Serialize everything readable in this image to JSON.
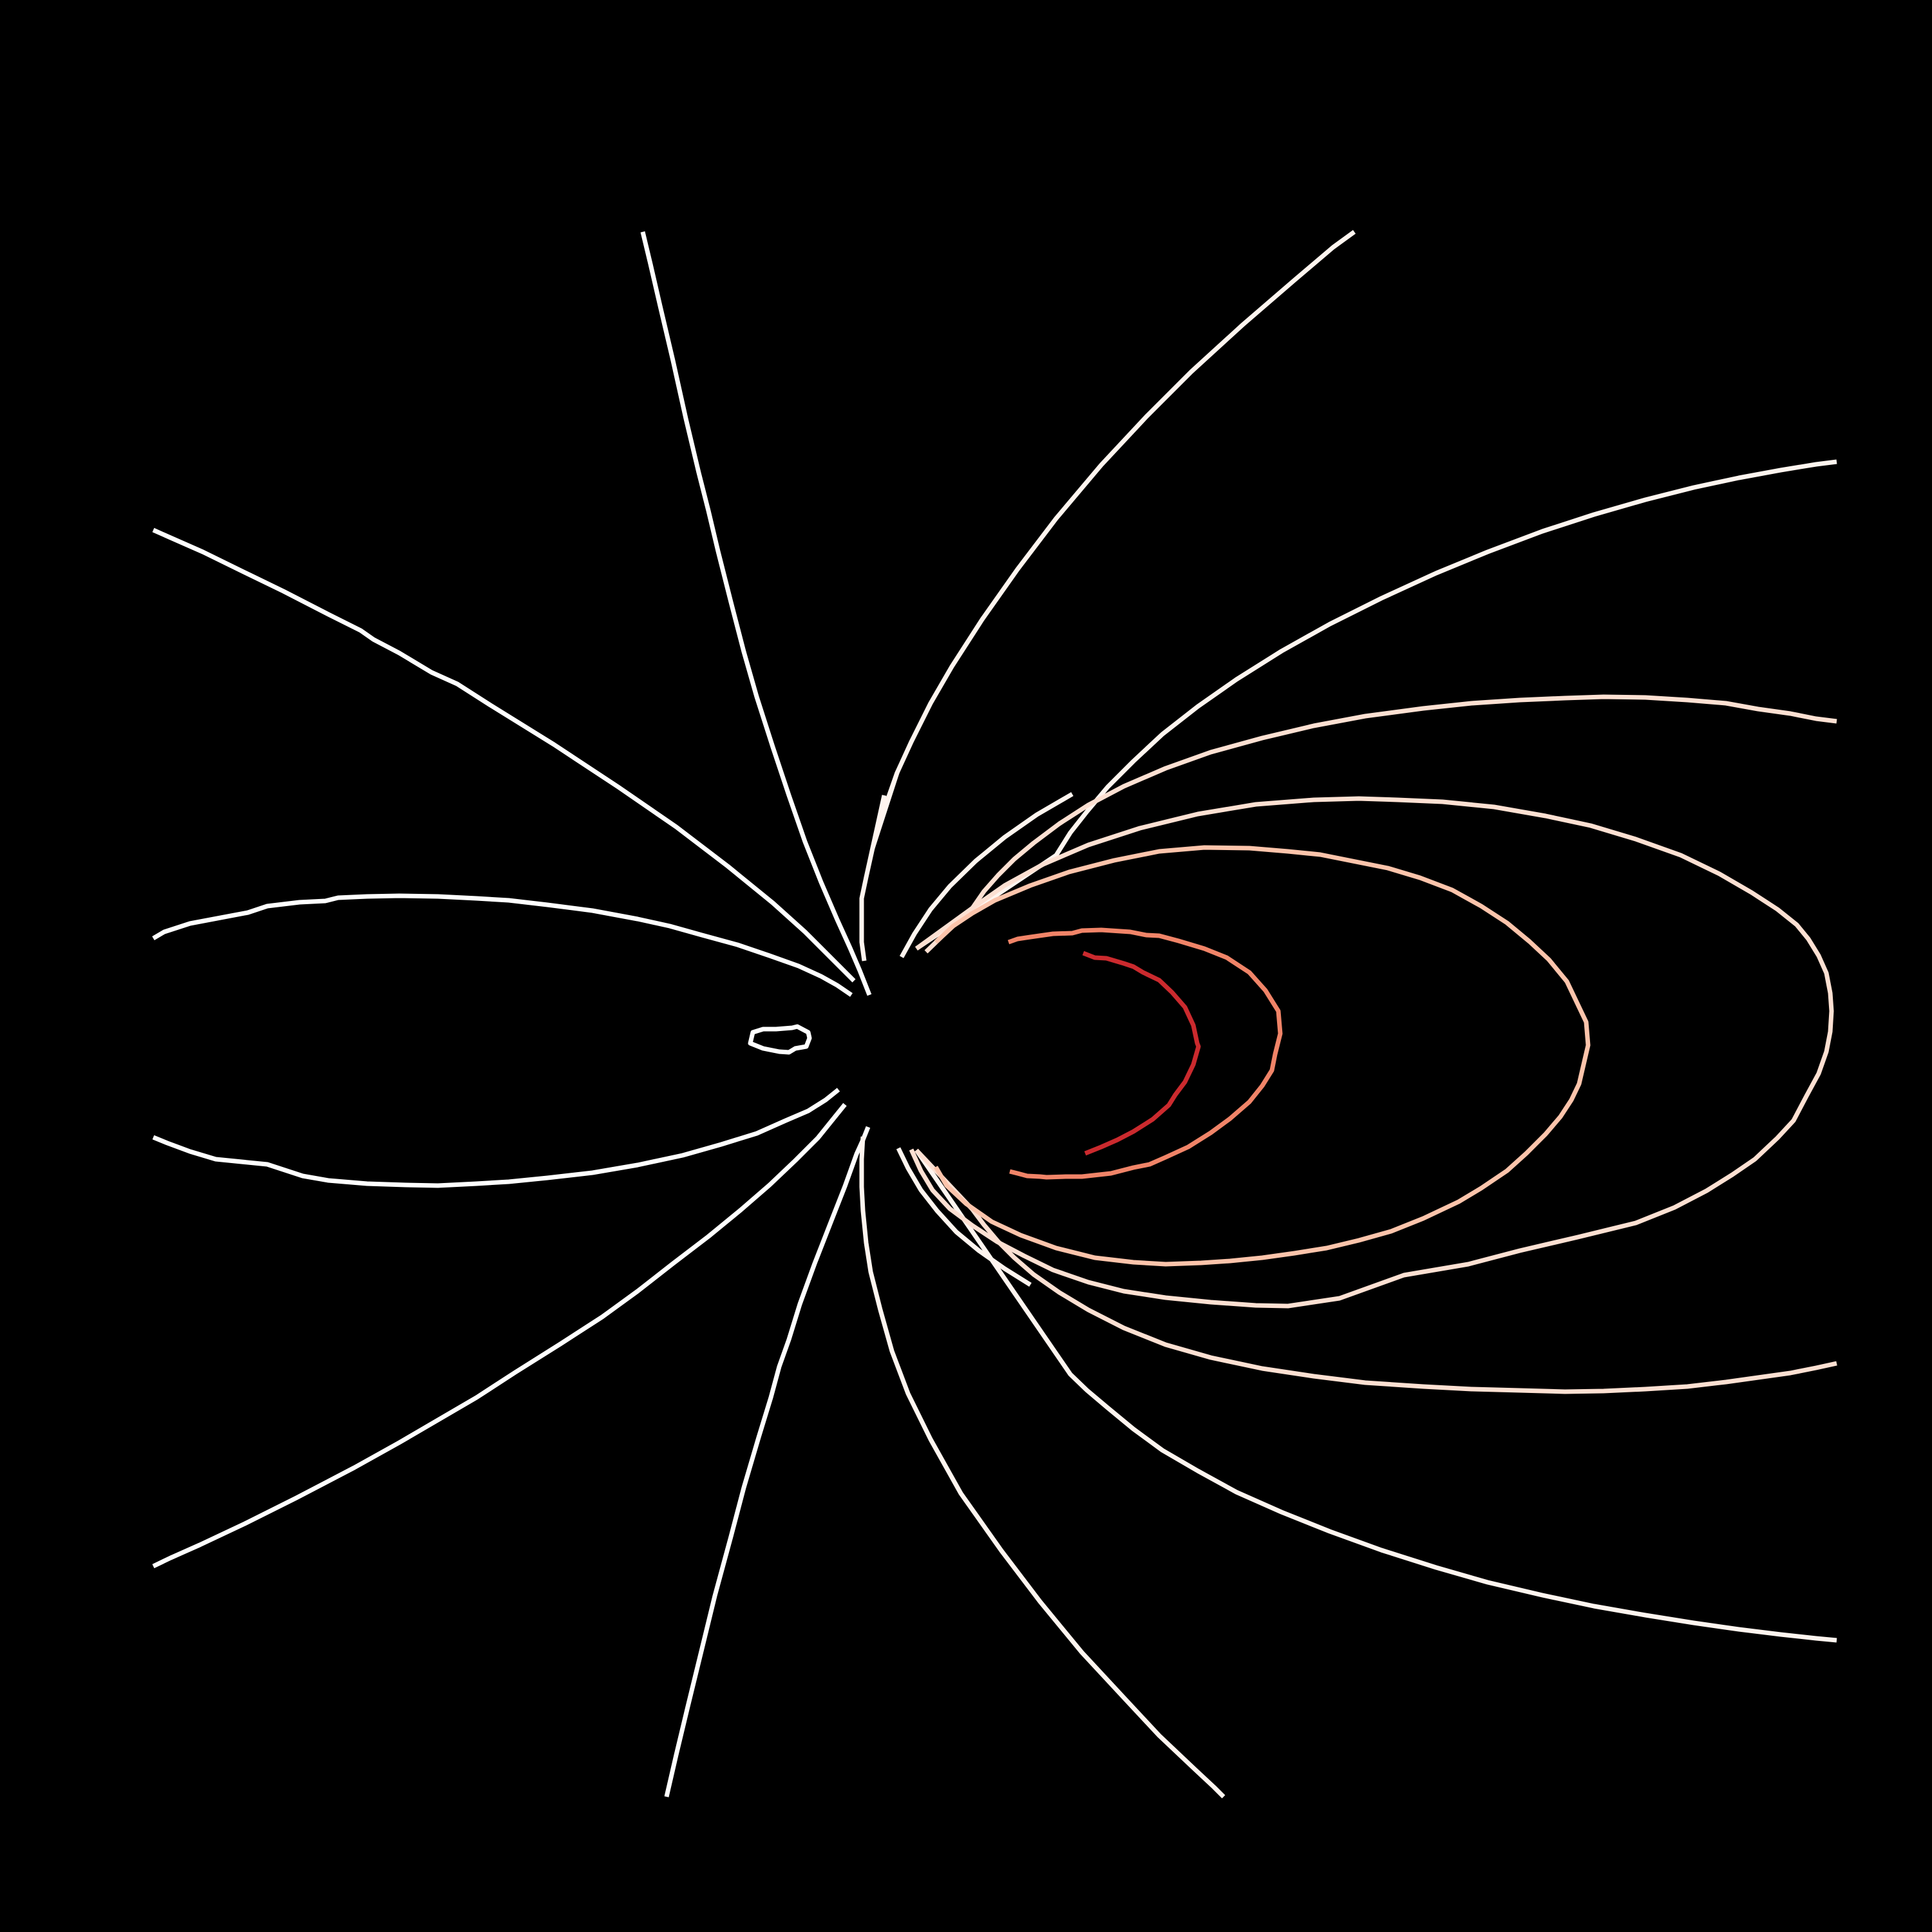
{
  "figure": {
    "background_color": "#000000",
    "description_type": "contour / field-line plot",
    "palette": {
      "white": "#ffffff",
      "near_white": "#fff5ef",
      "pale_peach": "#fde0d2",
      "peach": "#fcc4ab",
      "salmon": "#f08468",
      "crimson": "#cb2a2e"
    },
    "line_count": 22
  }
}
